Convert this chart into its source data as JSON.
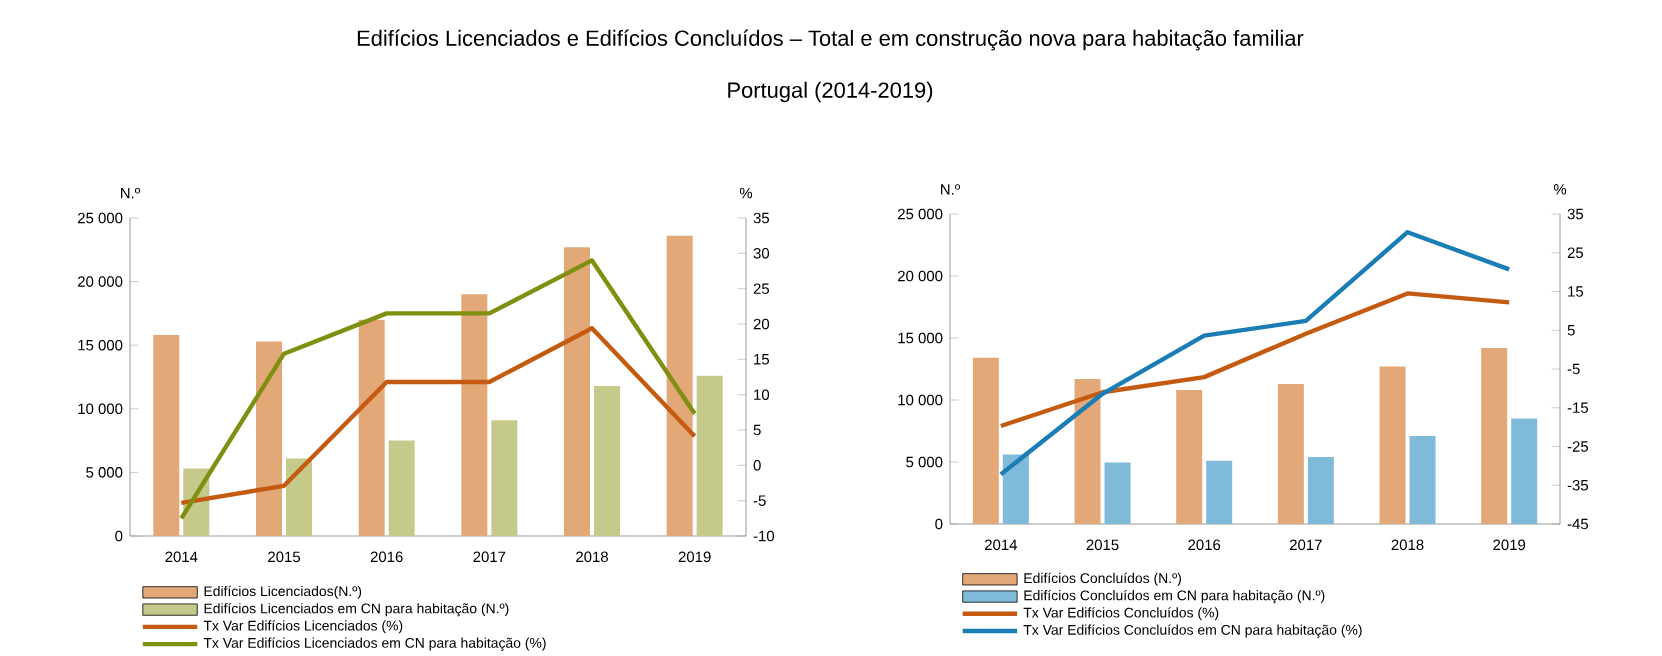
{
  "chart_data": [
    {
      "type": "bar",
      "title": "Edifícios Licenciados e Edifícios Concluídos – Total e em construção nova para habitação familiar",
      "subtitle": "Portugal (2014-2019)",
      "ylabel": "N.º",
      "y2label": "%",
      "categories": [
        "2014",
        "2015",
        "2016",
        "2017",
        "2018",
        "2019"
      ],
      "series": [
        {
          "name": "Edifícios Licenciados(N.º)",
          "type": "bar",
          "color": "#e2a878",
          "values": [
            15800,
            15300,
            17000,
            19000,
            22700,
            23600
          ]
        },
        {
          "name": "Edifícios Licenciados em CN para  habitação (N.º)",
          "type": "bar",
          "color": "#c5c98a",
          "values": [
            5300,
            6100,
            7500,
            9100,
            11800,
            12600
          ]
        },
        {
          "name": "Tx Var Edifícios Licenciados (%)",
          "type": "line",
          "axis": "y2",
          "color": "#c55a11",
          "values": [
            -5.3,
            -2.9,
            11.8,
            11.8,
            19.4,
            4.1
          ]
        },
        {
          "name": "Tx Var Edifícios Licenciados em CN para habitação (%)",
          "type": "line",
          "axis": "y2",
          "color": "#7f8f10",
          "values": [
            -7.5,
            15.8,
            21.5,
            21.5,
            29.0,
            7.3
          ]
        }
      ],
      "ylim": [
        0,
        25000
      ],
      "yticks": [
        0,
        {
          "value": 5000,
          "label": "5 000"
        },
        {
          "value": 10000,
          "label": "10 000"
        },
        {
          "value": 15000,
          "label": "15 000"
        },
        {
          "value": 20000,
          "label": "20 000"
        },
        {
          "value": 25000,
          "label": "25 000"
        }
      ],
      "y2lim": [
        -10,
        35
      ],
      "y2ticks": [
        -10,
        -5,
        0,
        5,
        10,
        15,
        20,
        25,
        30,
        35
      ],
      "legend": "bottom"
    },
    {
      "type": "bar",
      "ylabel": "N.º",
      "y2label": "%",
      "categories": [
        "2014",
        "2015",
        "2016",
        "2017",
        "2018",
        "2019"
      ],
      "series": [
        {
          "name": "Edifícios Concluídos (N.º)",
          "type": "bar",
          "color": "#e2a878",
          "values": [
            13400,
            11700,
            10800,
            11300,
            12700,
            14200
          ]
        },
        {
          "name": "Edifícios Concluídos em CN para habitação (N.º)",
          "type": "bar",
          "color": "#7fbbd9",
          "values": [
            5600,
            4950,
            5100,
            5400,
            7100,
            8500
          ]
        },
        {
          "name": "Tx Var Edifícios Concluídos (%)",
          "type": "line",
          "axis": "y2",
          "color": "#c55a11",
          "values": [
            -19.7,
            -11.0,
            -7.1,
            4.1,
            14.5,
            12.2
          ]
        },
        {
          "name": "Tx Var Edifícios Concluídos em CN para habitação (%)",
          "type": "line",
          "axis": "y2",
          "color": "#1a7db5",
          "values": [
            -32.2,
            -11.4,
            3.6,
            7.4,
            30.3,
            20.7
          ]
        }
      ],
      "ylim": [
        0,
        25000
      ],
      "yticks": [
        0,
        {
          "value": 5000,
          "label": "5 000"
        },
        {
          "value": 10000,
          "label": "10 000"
        },
        {
          "value": 15000,
          "label": "15 000"
        },
        {
          "value": 20000,
          "label": "20 000"
        },
        {
          "value": 25000,
          "label": "25 000"
        }
      ],
      "y2lim": [
        -45,
        35
      ],
      "y2ticks": [
        -45,
        -35,
        -25,
        -15,
        -5,
        5,
        15,
        25,
        35
      ],
      "legend": "bottom"
    }
  ]
}
